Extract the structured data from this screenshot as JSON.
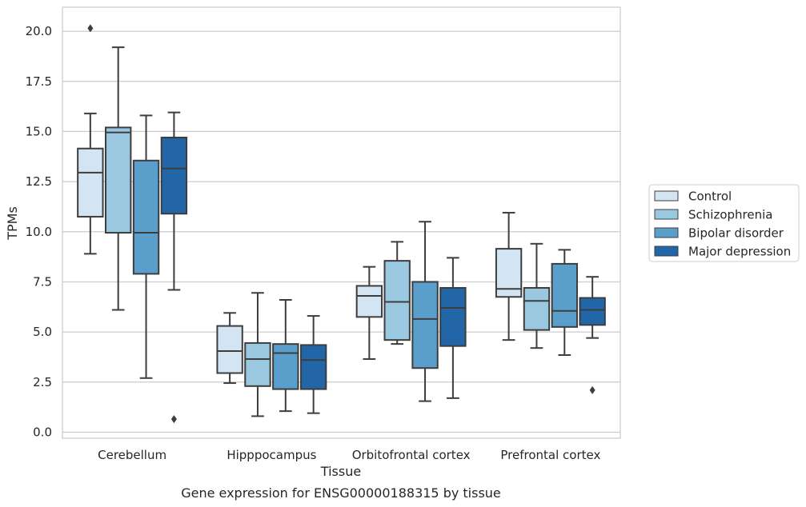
{
  "chart_data": {
    "type": "box",
    "title": "Gene expression for ENSG00000188315 by tissue",
    "xlabel": "Tissue",
    "ylabel": "TPMs",
    "ylim": [
      -0.3,
      21.2
    ],
    "yticks": [
      0.0,
      2.5,
      5.0,
      7.5,
      10.0,
      12.5,
      15.0,
      17.5,
      20.0
    ],
    "ytick_labels": [
      "0.0",
      "2.5",
      "5.0",
      "7.5",
      "10.0",
      "12.5",
      "15.0",
      "17.5",
      "20.0"
    ],
    "grid": "horizontal",
    "legend_position": "right",
    "categories": [
      "Cerebellum",
      "Hipppocampus",
      "Orbitofrontal cortex",
      "Prefrontal cortex"
    ],
    "series": [
      {
        "name": "Control",
        "color": "#d3e4f3",
        "boxes": [
          {
            "whisker_low": 8.9,
            "q1": 10.75,
            "median": 12.95,
            "q3": 14.15,
            "whisker_high": 15.9,
            "outliers": [
              20.15
            ]
          },
          {
            "whisker_low": 2.45,
            "q1": 2.95,
            "median": 4.05,
            "q3": 5.3,
            "whisker_high": 5.95,
            "outliers": []
          },
          {
            "whisker_low": 3.65,
            "q1": 5.75,
            "median": 6.8,
            "q3": 7.3,
            "whisker_high": 8.25,
            "outliers": []
          },
          {
            "whisker_low": 4.6,
            "q1": 6.75,
            "median": 7.15,
            "q3": 9.15,
            "whisker_high": 10.95,
            "outliers": []
          }
        ]
      },
      {
        "name": "Schizophrenia",
        "color": "#9ac8e0",
        "boxes": [
          {
            "whisker_low": 6.1,
            "q1": 9.95,
            "median": 14.95,
            "q3": 15.2,
            "whisker_high": 19.2,
            "outliers": []
          },
          {
            "whisker_low": 0.8,
            "q1": 2.3,
            "median": 3.65,
            "q3": 4.45,
            "whisker_high": 6.95,
            "outliers": []
          },
          {
            "whisker_low": 4.4,
            "q1": 4.6,
            "median": 6.5,
            "q3": 8.55,
            "whisker_high": 9.5,
            "outliers": []
          },
          {
            "whisker_low": 4.2,
            "q1": 5.1,
            "median": 6.55,
            "q3": 7.2,
            "whisker_high": 9.4,
            "outliers": []
          }
        ]
      },
      {
        "name": "Bipolar disorder",
        "color": "#5a9ecc",
        "boxes": [
          {
            "whisker_low": 2.7,
            "q1": 7.9,
            "median": 9.95,
            "q3": 13.55,
            "whisker_high": 15.8,
            "outliers": []
          },
          {
            "whisker_low": 1.05,
            "q1": 2.15,
            "median": 3.95,
            "q3": 4.4,
            "whisker_high": 6.6,
            "outliers": []
          },
          {
            "whisker_low": 1.55,
            "q1": 3.2,
            "median": 5.65,
            "q3": 7.5,
            "whisker_high": 10.5,
            "outliers": []
          },
          {
            "whisker_low": 3.85,
            "q1": 5.25,
            "median": 6.05,
            "q3": 8.4,
            "whisker_high": 9.1,
            "outliers": []
          }
        ]
      },
      {
        "name": "Major depression",
        "color": "#2366a8",
        "boxes": [
          {
            "whisker_low": 7.1,
            "q1": 10.9,
            "median": 13.15,
            "q3": 14.7,
            "whisker_high": 15.95,
            "outliers": [
              0.65
            ]
          },
          {
            "whisker_low": 0.95,
            "q1": 2.15,
            "median": 3.6,
            "q3": 4.35,
            "whisker_high": 5.8,
            "outliers": []
          },
          {
            "whisker_low": 1.7,
            "q1": 4.3,
            "median": 6.2,
            "q3": 7.2,
            "whisker_high": 8.7,
            "outliers": []
          },
          {
            "whisker_low": 4.7,
            "q1": 5.35,
            "median": 6.1,
            "q3": 6.7,
            "whisker_high": 7.75,
            "outliers": [
              2.1
            ]
          }
        ]
      }
    ]
  }
}
